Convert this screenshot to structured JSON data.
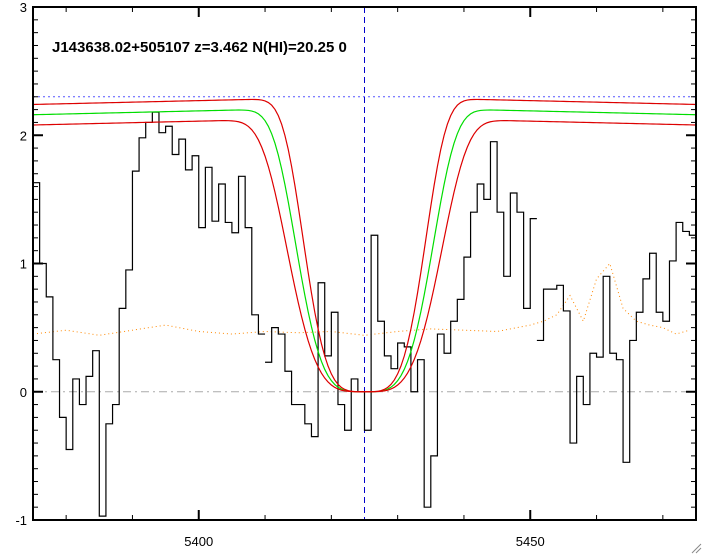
{
  "chart_data": {
    "type": "line",
    "title": "J143638.02+505107 z=3.462 N(HI)=20.25 0",
    "xlabel": "",
    "ylabel": "",
    "xlim": [
      5375,
      5475
    ],
    "ylim": [
      -1,
      3
    ],
    "x_ticks": [
      5400,
      5450
    ],
    "y_ticks": [
      -1,
      0,
      1,
      2,
      3
    ],
    "x_tick_labels": [
      "5400",
      "5450"
    ],
    "y_tick_labels": [
      "-1",
      "0",
      "1",
      "2",
      "3"
    ],
    "grid": false,
    "legend": "none",
    "series": [
      {
        "style": "histogram",
        "color": "#000000",
        "x": [
          5375,
          5376,
          5377,
          5378,
          5379,
          5380,
          5381,
          5382,
          5383,
          5384,
          5385,
          5386,
          5387,
          5388,
          5389,
          5390,
          5391,
          5392,
          5393,
          5394,
          5395,
          5396,
          5397,
          5398,
          5399,
          5400,
          5401,
          5402,
          5403,
          5404,
          5405,
          5406,
          5407,
          5408,
          5409,
          5410,
          5411,
          5412,
          5413,
          5414,
          5415,
          5416,
          5417,
          5418,
          5419,
          5420,
          5421,
          5422,
          5423,
          5424,
          5425,
          5426,
          5427,
          5428,
          5429,
          5430,
          5431,
          5432,
          5433,
          5434,
          5435,
          5436,
          5437,
          5438,
          5439,
          5440,
          5441,
          5442,
          5443,
          5444,
          5445,
          5446,
          5447,
          5448,
          5449,
          5450,
          5451,
          5452,
          5453,
          5454,
          5455,
          5456,
          5457,
          5458,
          5459,
          5460,
          5461,
          5462,
          5463,
          5464,
          5465,
          5466,
          5467,
          5468,
          5469,
          5470,
          5471,
          5472,
          5473,
          5474
        ],
        "y": [
          1.63,
          1.0,
          0.74,
          0.25,
          -0.2,
          -0.45,
          0.1,
          -0.1,
          0.12,
          0.32,
          -0.97,
          -0.25,
          -0.1,
          0.65,
          0.95,
          1.72,
          1.98,
          2.1,
          2.18,
          2.02,
          2.07,
          1.85,
          1.97,
          1.73,
          1.84,
          1.28,
          1.75,
          1.33,
          1.62,
          1.32,
          1.24,
          1.68,
          1.28,
          0.6,
          0.45,
          0.35,
          0.52,
          0.5,
          0.46,
          0.12,
          0.5,
          0.1,
          -0.1,
          0.22,
          -0.05,
          0.15,
          -0.1,
          -0.2,
          -0.5,
          0.5,
          0.87,
          0.3,
          0.2,
          0.3,
          0.05,
          0.15,
          -0.5,
          0.3,
          0.05,
          -0.2,
          0.0,
          0.4,
          0.6,
          0.4,
          0.14,
          0.5,
          0.35,
          0.0,
          -0.5,
          0.05,
          0.35,
          0.56,
          0.53,
          0.7,
          0.8,
          0.88,
          0.4,
          0.8,
          0.8,
          0.83,
          0.63,
          -0.4,
          0.12,
          -0.1,
          0.3,
          0.27,
          0.9,
          0.3,
          0.25,
          -0.55,
          0.4,
          0.62,
          0.88,
          1.08,
          0.62,
          0.55,
          1.02,
          1.32,
          1.25,
          1.22
        ]
      }
    ],
    "highlight_segments": [
      {
        "x": [
          5410,
          5411,
          5412,
          5413,
          5414,
          5415,
          5416,
          5417,
          5418,
          5419,
          5420,
          5421,
          5422,
          5423,
          5424,
          5425,
          5426,
          5427,
          5428,
          5429,
          5430,
          5431,
          5432,
          5433,
          5434,
          5435,
          5436,
          5437,
          5438,
          5439,
          5440,
          5441,
          5442,
          5443,
          5444,
          5445,
          5446,
          5447,
          5448,
          5449,
          5450
        ],
        "y": [
          0.23,
          0.5,
          0.45,
          0.16,
          -0.1,
          -0.1,
          -0.25,
          -0.35,
          0.85,
          0.28,
          0.62,
          -0.1,
          -0.3,
          0.1,
          0.0,
          -0.3,
          1.22,
          0.55,
          0.28,
          0.18,
          0.38,
          0.35,
          0.0,
          0.25,
          -0.9,
          -0.5,
          0.45,
          0.3,
          0.55,
          0.72,
          1.05,
          1.4,
          1.62,
          1.5,
          1.95,
          1.4,
          0.9,
          1.55,
          1.4,
          0.65,
          1.35
        ]
      }
    ],
    "lines": [
      {
        "name": "",
        "color": "#00dd00",
        "kind": "fit",
        "center": 5425,
        "depth": 2.18,
        "width": 11.2
      },
      {
        "name": "",
        "color": "#dd0000",
        "kind": "fit-upper",
        "center": 5425,
        "depth": 2.22,
        "width": 10.0
      },
      {
        "name": "",
        "color": "#dd0000",
        "kind": "fit-lower",
        "center": 5425,
        "depth": 2.14,
        "width": 12.6
      }
    ],
    "error_series": {
      "color": "#ff8800",
      "x": [
        5375,
        5380,
        5385,
        5390,
        5395,
        5400,
        5405,
        5410,
        5415,
        5420,
        5425,
        5430,
        5435,
        5440,
        5445,
        5450,
        5452,
        5454,
        5456,
        5458,
        5460,
        5462,
        5464,
        5466,
        5468,
        5470,
        5472,
        5474
      ],
      "y": [
        0.45,
        0.48,
        0.44,
        0.48,
        0.52,
        0.47,
        0.45,
        0.47,
        0.46,
        0.47,
        0.44,
        0.47,
        0.49,
        0.48,
        0.47,
        0.52,
        0.55,
        0.6,
        0.75,
        0.55,
        0.88,
        1.0,
        0.65,
        0.55,
        0.52,
        0.5,
        0.45,
        0.48
      ]
    },
    "continuum_level": 2.3,
    "zero_level": 0,
    "line_center": 5425
  }
}
